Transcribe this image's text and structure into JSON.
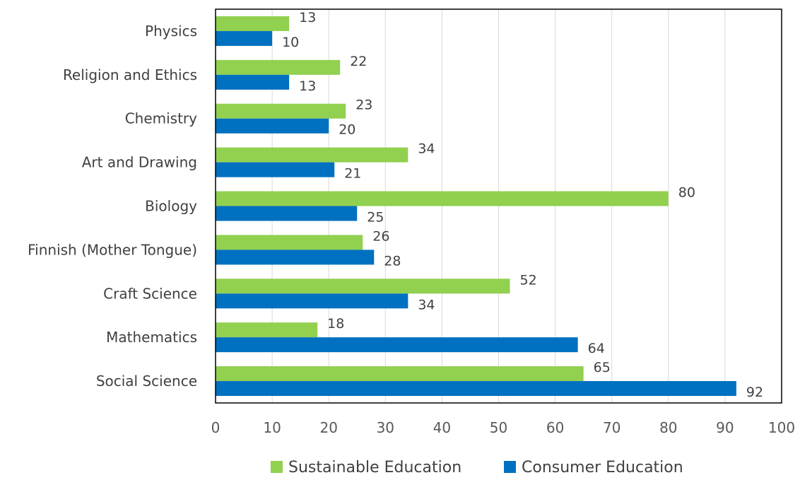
{
  "chart_data": {
    "type": "bar",
    "orientation": "horizontal",
    "categories": [
      "Physics",
      "Religion and Ethics",
      "Chemistry",
      "Art and Drawing",
      "Biology",
      "Finnish (Mother Tongue)",
      "Craft Science",
      "Mathematics",
      "Social Science"
    ],
    "series": [
      {
        "name": "Sustainable Education",
        "color": "#92d050",
        "values": [
          13,
          22,
          23,
          34,
          80,
          26,
          52,
          18,
          65
        ]
      },
      {
        "name": "Consumer Education",
        "color": "#0070c0",
        "values": [
          10,
          13,
          20,
          21,
          25,
          28,
          34,
          64,
          92
        ]
      }
    ],
    "xlim": [
      0,
      100
    ],
    "xticks": [
      0,
      10,
      20,
      30,
      40,
      50,
      60,
      70,
      80,
      90,
      100
    ],
    "grid": true,
    "data_labels": true,
    "legend_position": "bottom"
  }
}
